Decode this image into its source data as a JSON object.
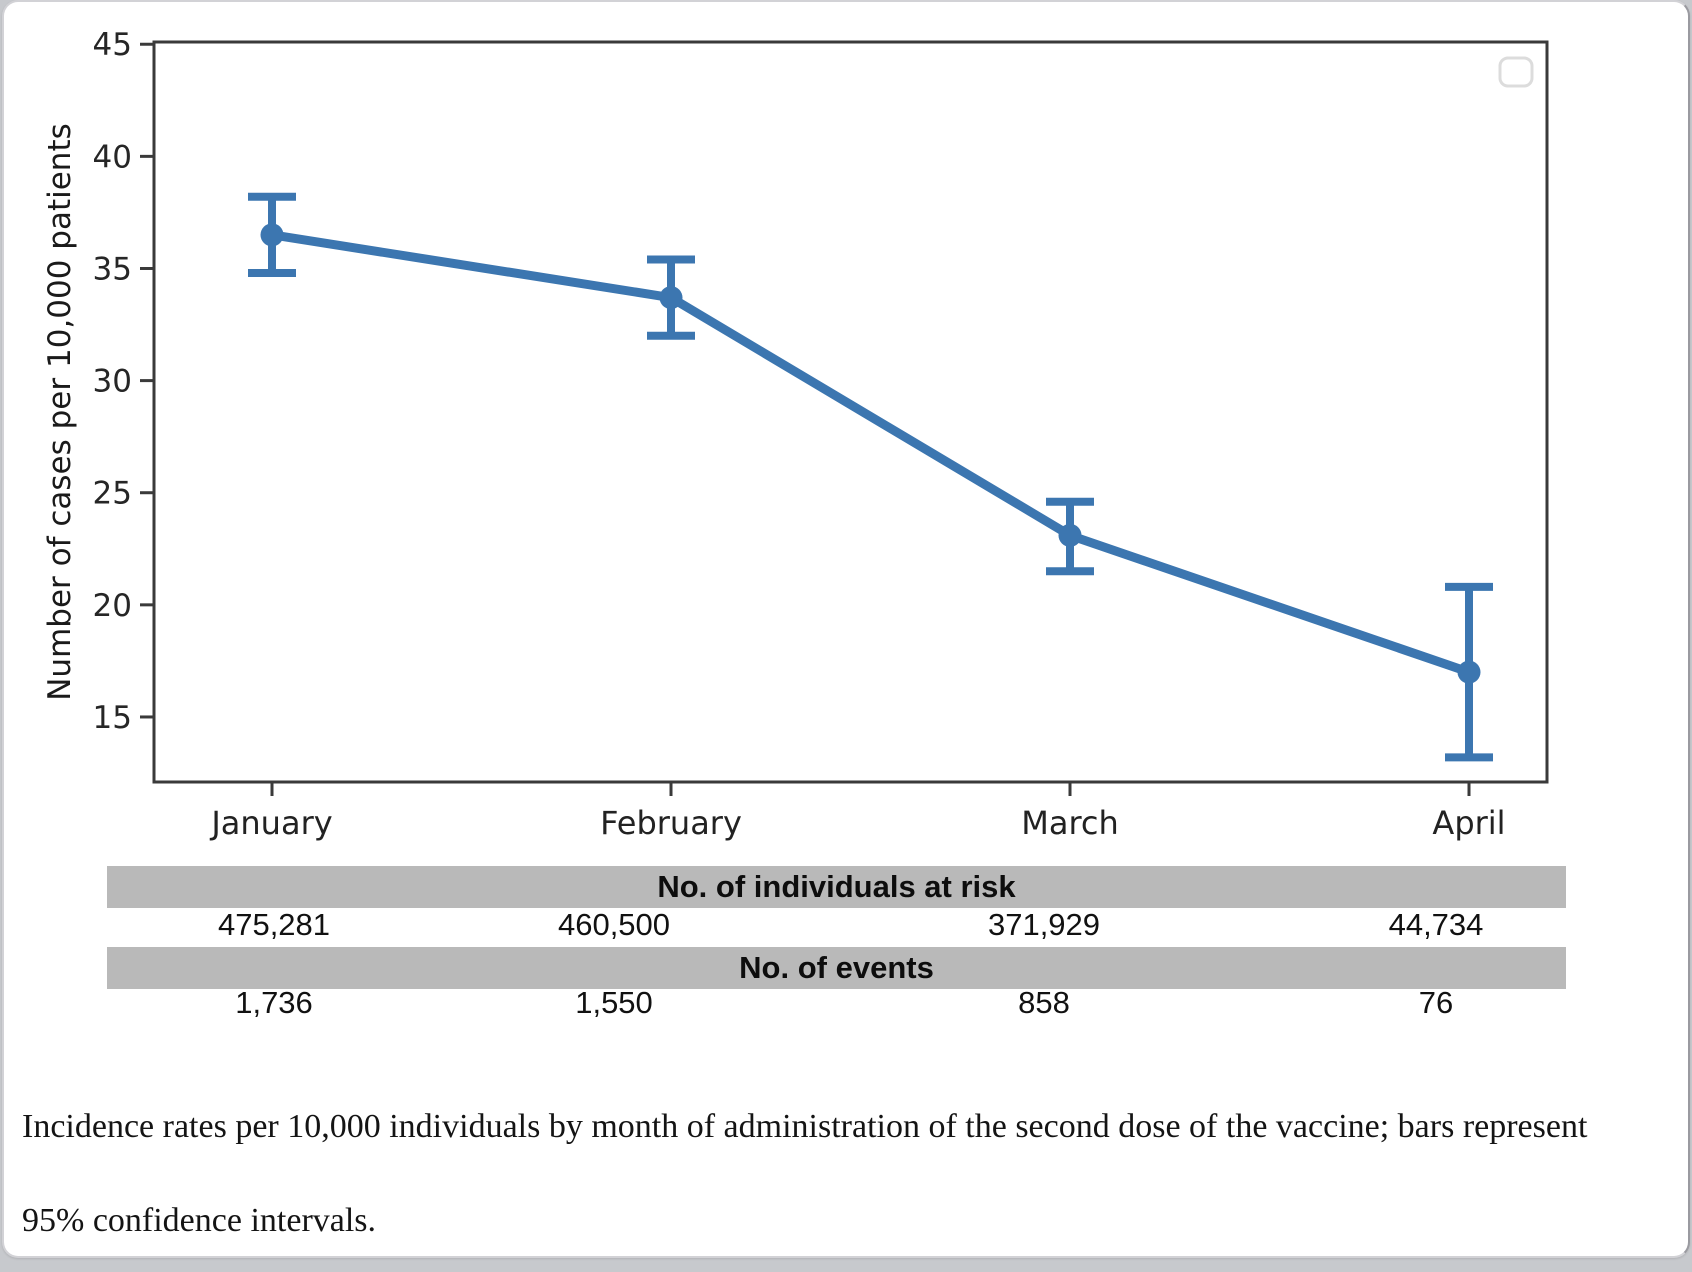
{
  "page": {
    "background_color": "#c7c9cd",
    "card_background": "#ffffff"
  },
  "chart_data": {
    "type": "line",
    "categories": [
      "January",
      "February",
      "March",
      "April"
    ],
    "series": [
      {
        "name": "Incidence rate per 10,000",
        "values": [
          36.5,
          33.7,
          23.1,
          17.0
        ],
        "ci_low": [
          34.8,
          32.0,
          21.5,
          13.2
        ],
        "ci_high": [
          38.2,
          35.4,
          24.6,
          20.8
        ],
        "color": "#3c76b0"
      }
    ],
    "title": "",
    "xlabel": "",
    "ylabel": "Number of cases per 10,000 patients",
    "ylim": [
      12.1,
      45.1
    ],
    "yticks": [
      15,
      20,
      25,
      30,
      35,
      40,
      45
    ],
    "grid": false,
    "marker": "circle",
    "error_bars": "95% confidence intervals",
    "legend_position": "upper right",
    "legend_empty": true,
    "axis_color": "#3a3a3a"
  },
  "table": {
    "header_background": "#b9b9b9",
    "rows": [
      {
        "header": "No. of individuals at risk",
        "values": [
          "475,281",
          "460,500",
          "371,929",
          "44,734"
        ]
      },
      {
        "header": "No. of events",
        "values": [
          "1,736",
          "1,550",
          "858",
          "76"
        ]
      }
    ]
  },
  "caption": "Incidence rates per 10,000 individuals by month of administration of the second dose of the vaccine; bars represent 95% confidence intervals."
}
